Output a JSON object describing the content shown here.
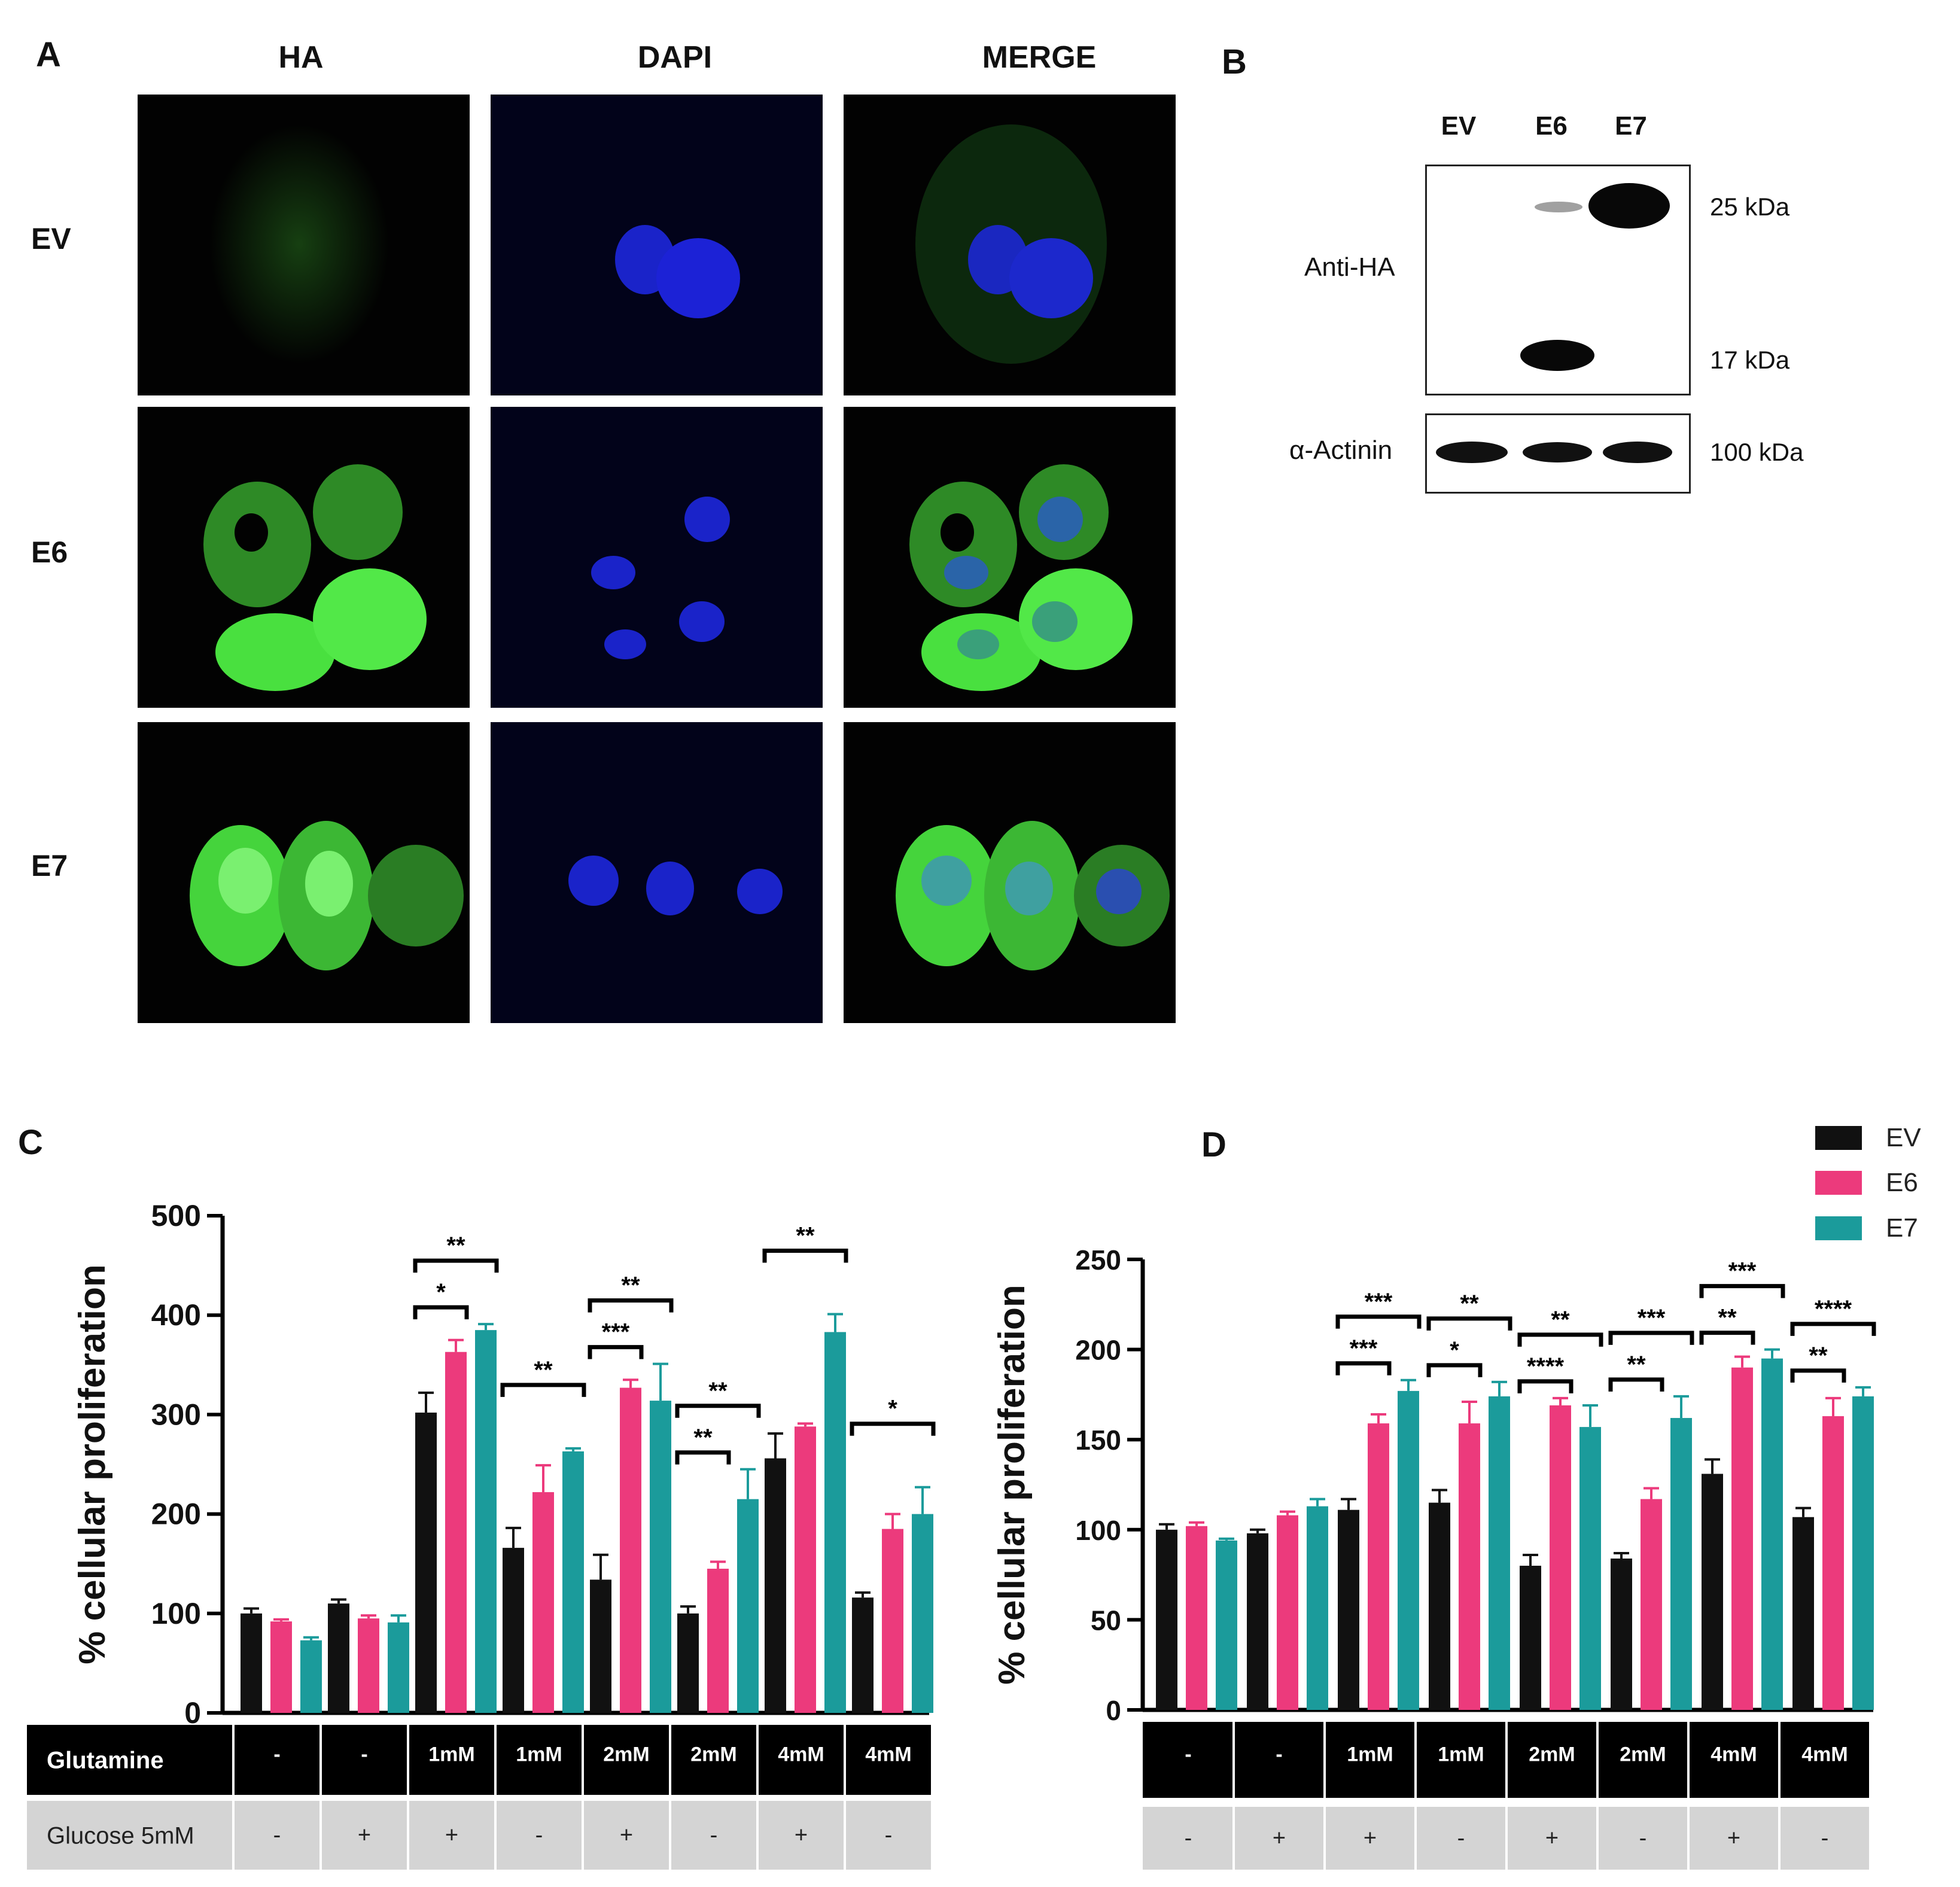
{
  "panelA": {
    "letter": "A",
    "columns": [
      "HA",
      "DAPI",
      "MERGE"
    ],
    "rows": [
      "EV",
      "E6",
      "E7"
    ]
  },
  "panelB": {
    "letter": "B",
    "lanes": [
      "EV",
      "E6",
      "E7"
    ],
    "antibodies": [
      "Anti-HA",
      "α-Actinin"
    ],
    "markers": [
      "25 kDa",
      "17 kDa",
      "100 kDa"
    ]
  },
  "legend": [
    {
      "name": "EV",
      "color": "#111111"
    },
    {
      "name": "E6",
      "color": "#ec3a7c"
    },
    {
      "name": "E7",
      "color": "#1b9b9b"
    }
  ],
  "colors": {
    "EV": "#111111",
    "E6": "#ec3a7c",
    "E7": "#1b9b9b",
    "ha_green": "#3fd83a",
    "dapi_blue": "#1e22d8",
    "table_dark": "#000000",
    "table_light": "#d4d4d4"
  },
  "chart_data": [
    {
      "panel": "C",
      "type": "bar",
      "ylabel": "% cellular proliferation",
      "ylim": [
        0,
        500
      ],
      "yticks": [
        "0",
        "100",
        "200",
        "300",
        "400",
        "500"
      ],
      "row1_label": "Glutamine",
      "row2_label": "Glucose 5mM",
      "glutamine": [
        "-",
        "-",
        "1mM",
        "1mM",
        "2mM",
        "2mM",
        "4mM",
        "4mM"
      ],
      "glucose": [
        "-",
        "+",
        "+",
        "-",
        "+",
        "-",
        "+",
        "-"
      ],
      "series": [
        {
          "name": "EV",
          "values": [
            100,
            110,
            302,
            166,
            134,
            100,
            256,
            116
          ],
          "errors": [
            5,
            4,
            20,
            20,
            25,
            7,
            25,
            5
          ]
        },
        {
          "name": "E6",
          "values": [
            92,
            95,
            363,
            222,
            327,
            145,
            288,
            185
          ],
          "errors": [
            2,
            3,
            12,
            27,
            8,
            7,
            3,
            15
          ]
        },
        {
          "name": "E7",
          "values": [
            73,
            91,
            385,
            263,
            314,
            215,
            383,
            200
          ],
          "errors": [
            3,
            7,
            6,
            3,
            37,
            30,
            18,
            27
          ]
        }
      ],
      "significance": [
        {
          "group": 2,
          "from": 0,
          "to": 1,
          "label": "*"
        },
        {
          "group": 2,
          "from": 0,
          "to": 2,
          "label": "**"
        },
        {
          "group": 3,
          "from": 0,
          "to": 2,
          "label": "**"
        },
        {
          "group": 4,
          "from": 0,
          "to": 1,
          "label": "***"
        },
        {
          "group": 4,
          "from": 0,
          "to": 2,
          "label": "**"
        },
        {
          "group": 5,
          "from": 0,
          "to": 1,
          "label": "**"
        },
        {
          "group": 5,
          "from": 0,
          "to": 2,
          "label": "**"
        },
        {
          "group": 6,
          "from": 0,
          "to": 2,
          "label": "**"
        },
        {
          "group": 7,
          "from": 0,
          "to": 2,
          "label": "*"
        }
      ]
    },
    {
      "panel": "D",
      "type": "bar",
      "ylabel": "% cellular proliferation",
      "ylim": [
        0,
        250
      ],
      "yticks": [
        "0",
        "50",
        "100",
        "150",
        "200",
        "250"
      ],
      "row1_label": "",
      "row2_label": "",
      "glutamine": [
        "-",
        "-",
        "1mM",
        "1mM",
        "2mM",
        "2mM",
        "4mM",
        "4mM"
      ],
      "glucose": [
        "-",
        "+",
        "+",
        "-",
        "+",
        "-",
        "+",
        "-"
      ],
      "series": [
        {
          "name": "EV",
          "values": [
            100,
            98,
            111,
            115,
            80,
            84,
            131,
            107
          ],
          "errors": [
            3,
            2,
            6,
            7,
            6,
            3,
            8,
            5
          ]
        },
        {
          "name": "E6",
          "values": [
            102,
            108,
            159,
            159,
            169,
            117,
            190,
            163
          ],
          "errors": [
            2,
            2,
            5,
            12,
            4,
            6,
            6,
            10
          ]
        },
        {
          "name": "E7",
          "values": [
            94,
            113,
            177,
            174,
            157,
            162,
            195,
            174
          ],
          "errors": [
            1,
            4,
            6,
            8,
            12,
            12,
            5,
            5
          ]
        }
      ],
      "significance": [
        {
          "group": 2,
          "from": 0,
          "to": 1,
          "label": "***"
        },
        {
          "group": 2,
          "from": 0,
          "to": 2,
          "label": "***"
        },
        {
          "group": 3,
          "from": 0,
          "to": 1,
          "label": "*"
        },
        {
          "group": 3,
          "from": 0,
          "to": 2,
          "label": "**"
        },
        {
          "group": 4,
          "from": 0,
          "to": 1,
          "label": "****"
        },
        {
          "group": 4,
          "from": 0,
          "to": 2,
          "label": "**"
        },
        {
          "group": 5,
          "from": 0,
          "to": 1,
          "label": "**"
        },
        {
          "group": 5,
          "from": 0,
          "to": 2,
          "label": "***"
        },
        {
          "group": 6,
          "from": 0,
          "to": 1,
          "label": "**"
        },
        {
          "group": 6,
          "from": 0,
          "to": 2,
          "label": "***"
        },
        {
          "group": 7,
          "from": 0,
          "to": 1,
          "label": "**"
        },
        {
          "group": 7,
          "from": 0,
          "to": 2,
          "label": "****"
        }
      ]
    }
  ],
  "panelC_letter": "C",
  "panelD_letter": "D"
}
